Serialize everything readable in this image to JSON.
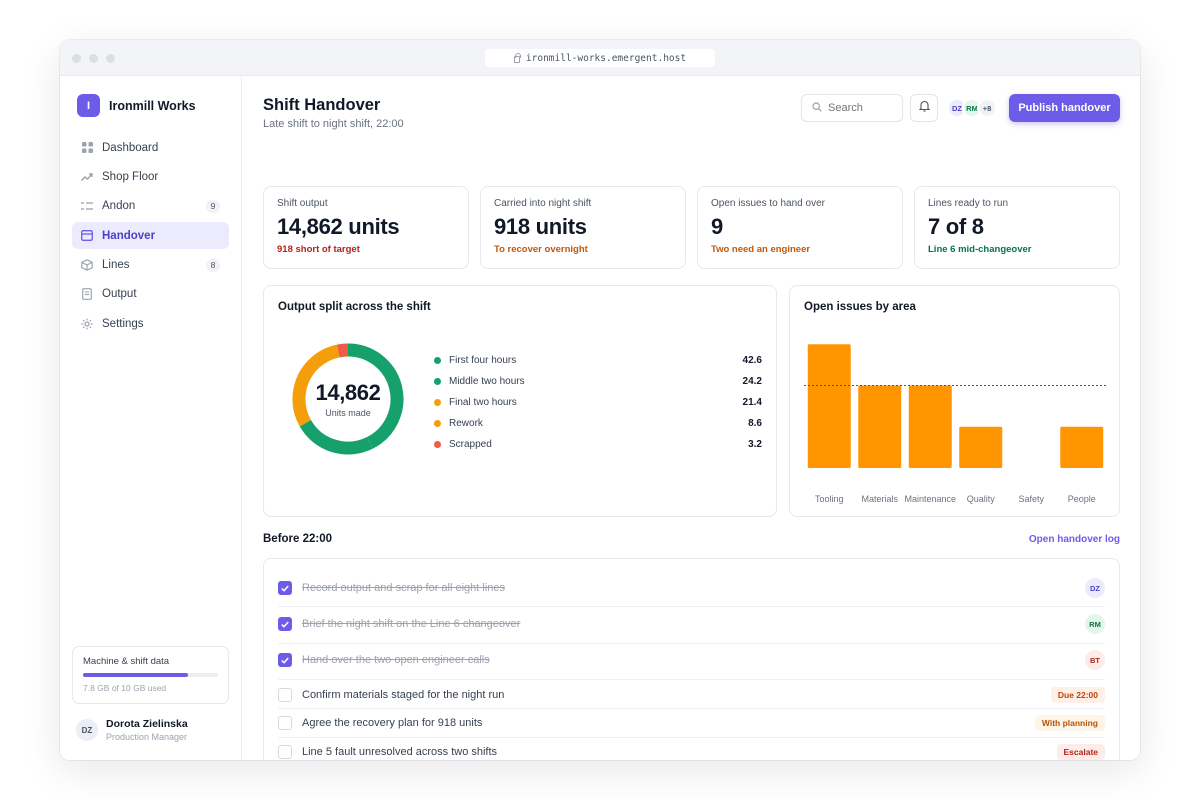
{
  "browser": {
    "url": "ironmill-works.emergent.host"
  },
  "brand": {
    "initial": "I",
    "name": "Ironmill Works"
  },
  "nav": [
    {
      "label": "Dashboard",
      "icon": "grid-icon"
    },
    {
      "label": "Shop Floor",
      "icon": "trend-icon"
    },
    {
      "label": "Andon",
      "icon": "list-icon",
      "badge": "9"
    },
    {
      "label": "Handover",
      "icon": "panel-icon",
      "active": true
    },
    {
      "label": "Lines",
      "icon": "box-icon",
      "badge": "8"
    },
    {
      "label": "Output",
      "icon": "document-icon"
    },
    {
      "label": "Settings",
      "icon": "gear-icon"
    }
  ],
  "storage": {
    "title": "Machine & shift data",
    "text": "7.8 GB of 10 GB used",
    "fraction": 0.78
  },
  "user": {
    "initials": "DZ",
    "name": "Dorota Zielinska",
    "role": "Production Manager"
  },
  "header": {
    "title": "Shift Handover",
    "subtitle": "Late shift to night shift, 22:00",
    "search_placeholder": "Search",
    "avatars": [
      "DZ",
      "RM"
    ],
    "avatars_more": "+8",
    "publish_label": "Publish handover"
  },
  "kpis": [
    {
      "label": "Shift output",
      "value": "14,862 units",
      "note": "918 short of target",
      "note_color": "#b42318"
    },
    {
      "label": "Carried into night shift",
      "value": "918 units",
      "note": "To recover overnight",
      "note_color": "#c2570c"
    },
    {
      "label": "Open issues to hand over",
      "value": "9",
      "note": "Two need an engineer",
      "note_color": "#c2570c"
    },
    {
      "label": "Lines ready to run",
      "value": "7 of 8",
      "note": "Line 6 mid-changeover",
      "note_color": "#067647"
    }
  ],
  "chart_data": [
    {
      "type": "pie",
      "title": "Output split across the shift",
      "center_value": "14,862",
      "center_label": "Units made",
      "categories": [
        "First four hours",
        "Middle two hours",
        "Final two hours",
        "Rework",
        "Scrapped"
      ],
      "values": [
        42.6,
        24.2,
        21.4,
        8.6,
        3.2
      ],
      "value_labels": [
        "42.6",
        "24.2",
        "21.4",
        "8.6",
        "3.2"
      ],
      "colors": [
        "#16a06b",
        "#16a06b",
        "#f59e0b",
        "#f59e0b",
        "#ef5b45"
      ]
    },
    {
      "type": "bar",
      "title": "Open issues by area",
      "categories": [
        "Tooling",
        "Materials",
        "Maintenance",
        "Quality",
        "Safety",
        "People"
      ],
      "values": [
        3,
        2,
        2,
        1,
        0,
        1
      ],
      "reference_line": 2,
      "ylim": [
        0,
        3.2
      ],
      "color": "#ff9500"
    }
  ],
  "tasks": {
    "title": "Before 22:00",
    "link": "Open handover log",
    "items": [
      {
        "text": "Record output and scrap for all eight lines",
        "done": true,
        "assignee": "DZ"
      },
      {
        "text": "Brief the night shift on the Line 6 changeover",
        "done": true,
        "assignee": "RM"
      },
      {
        "text": "Hand over the two open engineer calls",
        "done": true,
        "assignee": "BT"
      },
      {
        "text": "Confirm materials staged for the night run",
        "done": false,
        "tag": "Due 22:00"
      },
      {
        "text": "Agree the recovery plan for 918 units",
        "done": false,
        "tag": "With planning"
      },
      {
        "text": "Line 5 fault unresolved across two shifts",
        "done": false,
        "tag": "Escalate"
      }
    ]
  }
}
